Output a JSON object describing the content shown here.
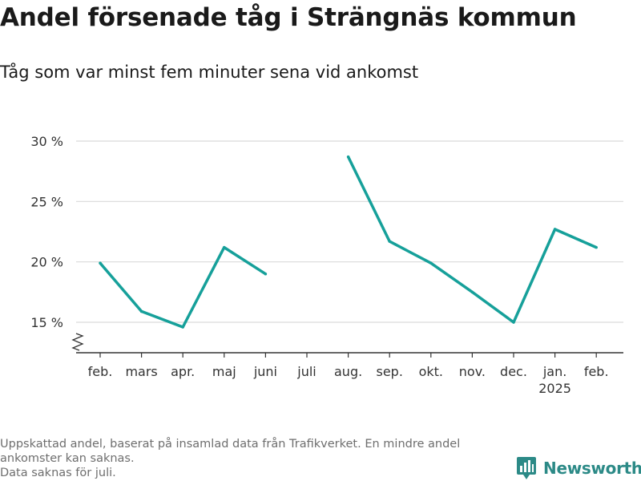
{
  "header": {
    "title": "Andel försenade tåg i Strängnäs kommun",
    "subtitle": "Tåg som var minst fem minuter sena vid ankomst"
  },
  "chart_data": {
    "type": "line",
    "categories": [
      "feb.",
      "mars",
      "apr.",
      "maj",
      "juni",
      "juli",
      "aug.",
      "sep.",
      "okt.",
      "nov.",
      "dec.",
      "jan.",
      "feb."
    ],
    "category_sublabels": [
      "",
      "",
      "",
      "",
      "",
      "",
      "",
      "",
      "",
      "",
      "",
      "2025",
      ""
    ],
    "series": [
      {
        "values": [
          19.9,
          15.9,
          14.6,
          21.2,
          19.0,
          null,
          28.7,
          21.7,
          19.9,
          17.5,
          15.0,
          22.7,
          21.2
        ]
      }
    ],
    "yticks": [
      15,
      20,
      25,
      30
    ],
    "ytick_labels": [
      "15 %",
      "20 %",
      "25 %",
      "30 %"
    ],
    "ylim": [
      12.6,
      30
    ],
    "axis_break": true,
    "grid": true,
    "colors": {
      "line": "#16a09a",
      "grid": "#d9d9d9",
      "axis": "#333333"
    }
  },
  "footer": {
    "notes": [
      "Uppskattad andel, baserat på insamlad data från Trafikverket. En mindre andel ankomster kan saknas.",
      "Data saknas för juli."
    ],
    "brand": "Newsworthy",
    "brand_color": "#2c8a87"
  }
}
